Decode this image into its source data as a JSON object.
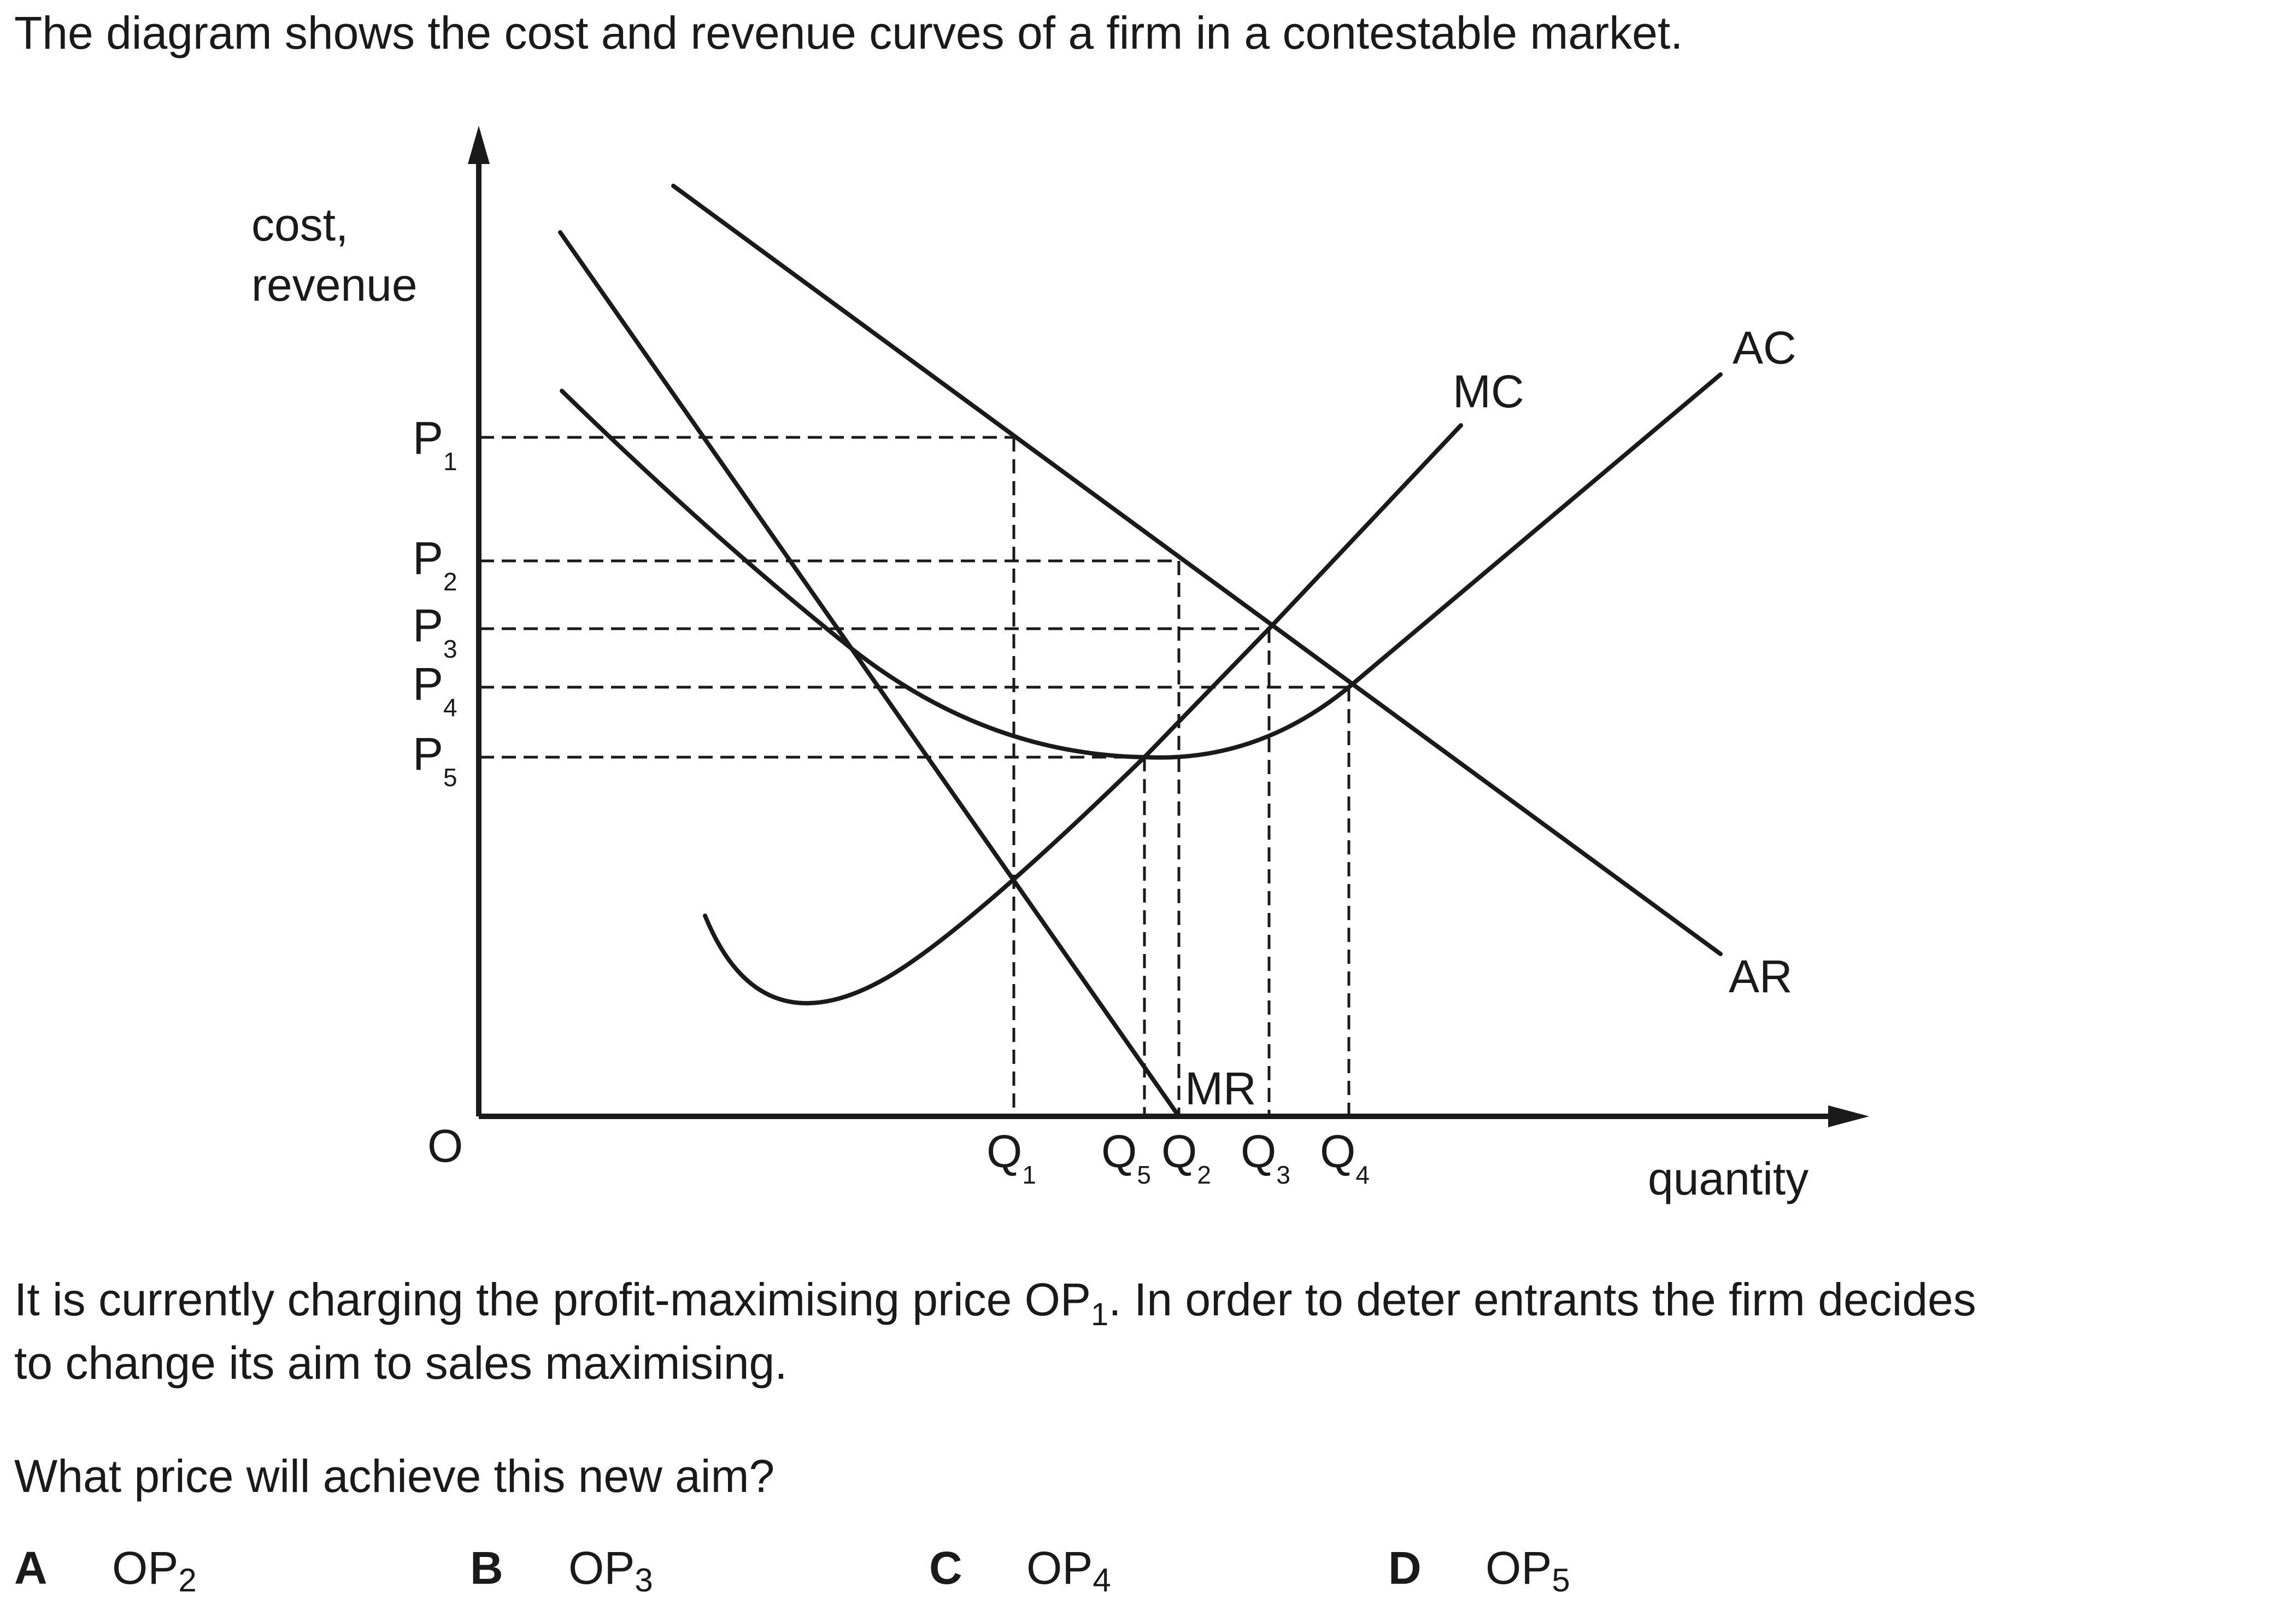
{
  "intro": "The diagram shows the cost and revenue curves of a firm in a contestable market.",
  "diagram": {
    "y_axis_label_line1": "cost,",
    "y_axis_label_line2": "revenue",
    "x_axis_label": "quantity",
    "origin": "O",
    "price_labels": [
      {
        "main": "P",
        "sub": "1"
      },
      {
        "main": "P",
        "sub": "2"
      },
      {
        "main": "P",
        "sub": "3"
      },
      {
        "main": "P",
        "sub": "4"
      },
      {
        "main": "P",
        "sub": "5"
      }
    ],
    "quantity_labels": [
      {
        "main": "Q",
        "sub": "1"
      },
      {
        "main": "Q",
        "sub": "5"
      },
      {
        "main": "Q",
        "sub": "2"
      },
      {
        "main": "Q",
        "sub": "3"
      },
      {
        "main": "Q",
        "sub": "4"
      }
    ],
    "curve_labels": {
      "mc": "MC",
      "ac": "AC",
      "ar": "AR",
      "mr": "MR"
    }
  },
  "question": {
    "line1_before": "It is currently charging the profit-maximising price OP",
    "line1_sub": "1",
    "line1_after": ". In order to deter entrants the firm decides",
    "line2": "to change its aim to sales maximising.",
    "prompt": "What price will achieve this new aim?"
  },
  "options": [
    {
      "letter": "A",
      "text": "OP",
      "sub": "2"
    },
    {
      "letter": "B",
      "text": "OP",
      "sub": "3"
    },
    {
      "letter": "C",
      "text": "OP",
      "sub": "4"
    },
    {
      "letter": "D",
      "text": "OP",
      "sub": "5"
    }
  ]
}
